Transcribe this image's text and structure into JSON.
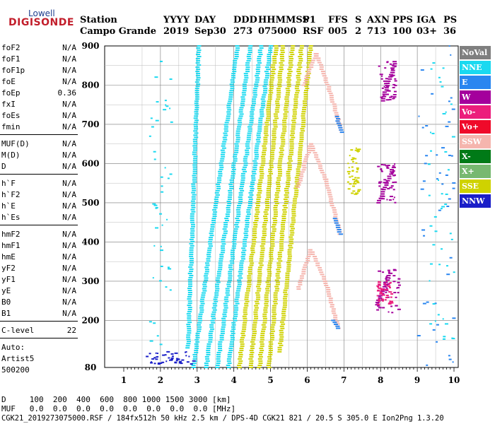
{
  "logo": {
    "top": "Lowell",
    "main": "DIGISONDE"
  },
  "header": {
    "labels": [
      "Station",
      "YYYY",
      "DAY",
      "DDD",
      "HHMMSS",
      "P1",
      "FFS",
      "S",
      "AXN",
      "PPS",
      "IGA",
      "PS"
    ],
    "values": [
      "Campo Grande",
      "2019",
      "Sep30",
      "273",
      "075000",
      "RSF",
      "005",
      "2",
      "713",
      "100",
      "03+",
      "36"
    ]
  },
  "params": [
    {
      "name": "foF2",
      "value": "N/A"
    },
    {
      "name": "foF1",
      "value": "N/A"
    },
    {
      "name": "foF1p",
      "value": "N/A"
    },
    {
      "name": "foE",
      "value": "N/A"
    },
    {
      "name": "foEp",
      "value": "0.36"
    },
    {
      "name": "fxI",
      "value": "N/A"
    },
    {
      "name": "foEs",
      "value": "N/A"
    },
    {
      "name": "fmin",
      "value": "N/A"
    },
    {
      "name": "MUF(D)",
      "value": "N/A"
    },
    {
      "name": "M(D)",
      "value": "N/A"
    },
    {
      "name": "D",
      "value": "N/A"
    },
    {
      "name": "h`F",
      "value": "N/A"
    },
    {
      "name": "h`F2",
      "value": "N/A"
    },
    {
      "name": "h`E",
      "value": "N/A"
    },
    {
      "name": "h`Es",
      "value": "N/A"
    },
    {
      "name": "hmF2",
      "value": "N/A"
    },
    {
      "name": "hmF1",
      "value": "N/A"
    },
    {
      "name": "hmE",
      "value": "N/A"
    },
    {
      "name": "yF2",
      "value": "N/A"
    },
    {
      "name": "yF1",
      "value": "N/A"
    },
    {
      "name": "yE",
      "value": "N/A"
    },
    {
      "name": "B0",
      "value": "N/A"
    },
    {
      "name": "B1",
      "value": "N/A"
    },
    {
      "name": "C-level",
      "value": "22"
    }
  ],
  "auto": {
    "line1": "Auto:",
    "line2": "Artist5",
    "line3": "500200"
  },
  "legend": [
    {
      "label": "NoVal",
      "color": "#7f7f7f"
    },
    {
      "label": "NNE",
      "color": "#1ad9f0"
    },
    {
      "label": "E",
      "color": "#2a86f0"
    },
    {
      "label": "W",
      "color": "#a4009c"
    },
    {
      "label": "Vo-",
      "color": "#ec1e7c"
    },
    {
      "label": "Vo+",
      "color": "#ef0a2a"
    },
    {
      "label": "SSW",
      "color": "#f5b5ae"
    },
    {
      "label": "X-",
      "color": "#007a17"
    },
    {
      "label": "X+",
      "color": "#77b870"
    },
    {
      "label": "SSE",
      "color": "#cfd200"
    },
    {
      "label": "NNW",
      "color": "#1a1ec8"
    }
  ],
  "footer": {
    "d_row": "D     100  200  400  600  800 1000 1500 3000 [km]",
    "muf_row": "MUF   0.0  0.0  0.0  0.0  0.0  0.0  0.0  0.0 [MHz]",
    "info": "CGK21_2019273075000.RSF / 184fx512h 50 kHz 2.5 km / DPS-4D CGK21 821 / 20.5 S 305.0 E Ion2Png 1.3.20"
  },
  "chart_data": {
    "type": "scatter",
    "title": "",
    "xlabel": "",
    "ylabel": "",
    "xlim": [
      1,
      10
    ],
    "ylim": [
      80,
      900
    ],
    "xticks": [
      1,
      2,
      3,
      4,
      5,
      6,
      7,
      8,
      9,
      10
    ],
    "yticks": [
      80,
      200,
      300,
      400,
      500,
      600,
      700,
      800,
      900
    ],
    "grid": true,
    "legend_placement": "right",
    "traces": [
      {
        "color": "#1ad9f0",
        "points": [
          [
            2.9,
            80
          ],
          [
            4.1,
            900
          ]
        ]
      },
      {
        "color": "#1ad9f0",
        "points": [
          [
            3.25,
            80
          ],
          [
            4.45,
            900
          ]
        ]
      },
      {
        "color": "#1ad9f0",
        "points": [
          [
            3.55,
            80
          ],
          [
            4.75,
            900
          ]
        ]
      },
      {
        "color": "#1ad9f0",
        "points": [
          [
            3.85,
            80
          ],
          [
            5.0,
            900
          ]
        ]
      },
      {
        "color": "#1ad9f0",
        "points": [
          [
            2.75,
            130
          ],
          [
            3.05,
            900
          ]
        ]
      },
      {
        "color": "#cfd200",
        "points": [
          [
            4.15,
            80
          ],
          [
            5.15,
            900
          ]
        ]
      },
      {
        "color": "#cfd200",
        "points": [
          [
            4.45,
            80
          ],
          [
            5.35,
            900
          ]
        ]
      },
      {
        "color": "#cfd200",
        "points": [
          [
            4.7,
            80
          ],
          [
            5.6,
            900
          ]
        ]
      },
      {
        "color": "#cfd200",
        "points": [
          [
            4.95,
            80
          ],
          [
            5.85,
            900
          ]
        ]
      },
      {
        "color": "#cfd200",
        "points": [
          [
            5.25,
            120
          ],
          [
            6.1,
            900
          ]
        ]
      },
      {
        "color": "#f5b5ae",
        "points": [
          [
            5.75,
            280
          ],
          [
            6.1,
            380
          ],
          [
            6.5,
            300
          ],
          [
            6.85,
            180
          ]
        ]
      },
      {
        "color": "#f5b5ae",
        "points": [
          [
            5.75,
            540
          ],
          [
            6.1,
            650
          ],
          [
            6.5,
            560
          ],
          [
            6.9,
            420
          ]
        ]
      },
      {
        "color": "#f5b5ae",
        "points": [
          [
            5.9,
            800
          ],
          [
            6.25,
            880
          ],
          [
            6.6,
            790
          ],
          [
            6.95,
            680
          ]
        ]
      },
      {
        "color": "#2a86f0",
        "points": [
          [
            6.7,
            200
          ],
          [
            6.85,
            180
          ]
        ]
      },
      {
        "color": "#2a86f0",
        "points": [
          [
            6.75,
            460
          ],
          [
            6.9,
            420
          ]
        ]
      },
      {
        "color": "#2a86f0",
        "points": [
          [
            6.8,
            720
          ],
          [
            6.95,
            680
          ]
        ]
      },
      {
        "color": "#a4009c",
        "points": [
          [
            7.9,
            240
          ],
          [
            8.25,
            320
          ]
        ]
      },
      {
        "color": "#a4009c",
        "points": [
          [
            7.95,
            500
          ],
          [
            8.35,
            590
          ]
        ]
      },
      {
        "color": "#a4009c",
        "points": [
          [
            8.05,
            760
          ],
          [
            8.4,
            860
          ]
        ]
      }
    ],
    "clusters": [
      {
        "color": "#1ad9f0",
        "x": [
          1.7,
          2.3
        ],
        "y": [
          130,
          880
        ]
      },
      {
        "color": "#1a1ec8",
        "x": [
          1.6,
          2.9
        ],
        "y": [
          88,
          120
        ]
      },
      {
        "color": "#a4009c",
        "x": [
          7.9,
          8.5
        ],
        "y": [
          220,
          330
        ]
      },
      {
        "color": "#ec1e7c",
        "x": [
          7.9,
          8.3
        ],
        "y": [
          240,
          300
        ]
      },
      {
        "color": "#a4009c",
        "x": [
          7.9,
          8.4
        ],
        "y": [
          500,
          600
        ]
      },
      {
        "color": "#a4009c",
        "x": [
          7.95,
          8.4
        ],
        "y": [
          760,
          860
        ]
      },
      {
        "color": "#cfd200",
        "x": [
          7.1,
          7.4
        ],
        "y": [
          520,
          640
        ]
      },
      {
        "color": "#2a86f0",
        "x": [
          9.0,
          10.0
        ],
        "y": [
          80,
          900
        ]
      },
      {
        "color": "#1ad9f0",
        "x": [
          9.3,
          10.0
        ],
        "y": [
          150,
          860
        ]
      }
    ]
  }
}
